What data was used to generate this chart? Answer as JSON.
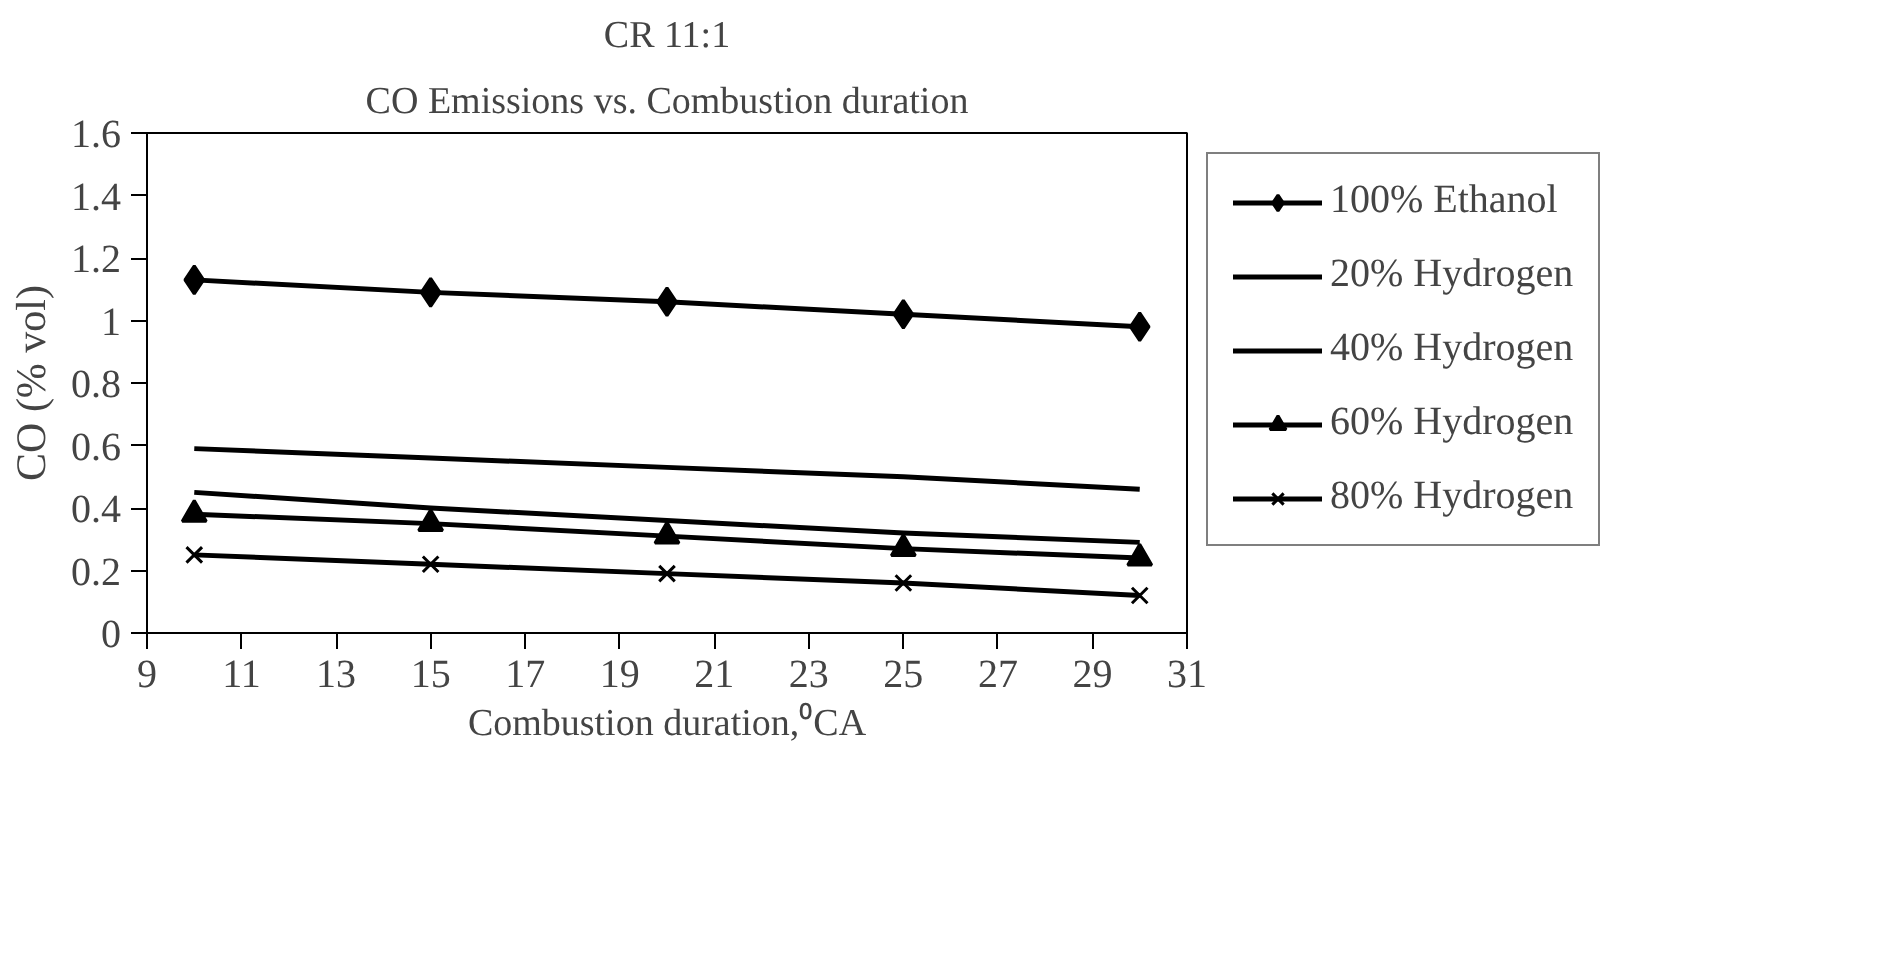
{
  "chart_data": {
    "type": "line",
    "title": "CR 11:1",
    "subtitle": "CO Emissions vs. Combustion duration",
    "xlabel": "Combustion duration,⁰CA",
    "ylabel": "CO (% vol)",
    "x": [
      10,
      15,
      20,
      25,
      30
    ],
    "series": [
      {
        "name": "100% Ethanol",
        "color": "#000000",
        "marker": "diamond",
        "values": [
          1.13,
          1.09,
          1.06,
          1.02,
          0.98
        ]
      },
      {
        "name": "20% Hydrogen",
        "color": "#000000",
        "marker": "none",
        "values": [
          0.59,
          0.56,
          0.53,
          0.5,
          0.46
        ]
      },
      {
        "name": "40% Hydrogen",
        "color": "#000000",
        "marker": "none",
        "values": [
          0.45,
          0.4,
          0.36,
          0.32,
          0.29
        ]
      },
      {
        "name": "60% Hydrogen",
        "color": "#000000",
        "marker": "triangle",
        "values": [
          0.38,
          0.35,
          0.31,
          0.27,
          0.24
        ]
      },
      {
        "name": "80% Hydrogen",
        "color": "#000000",
        "marker": "cross",
        "values": [
          0.25,
          0.22,
          0.19,
          0.16,
          0.12
        ]
      }
    ],
    "xlim": [
      9,
      31
    ],
    "xticks": [
      9,
      11,
      13,
      15,
      17,
      19,
      21,
      23,
      25,
      27,
      29,
      31
    ],
    "ylim": [
      0,
      1.6
    ],
    "yticks": [
      0,
      0.2,
      0.4,
      0.6,
      0.8,
      1,
      1.2,
      1.4,
      1.6
    ],
    "grid": false,
    "legend": "right",
    "line_style": "solid"
  }
}
